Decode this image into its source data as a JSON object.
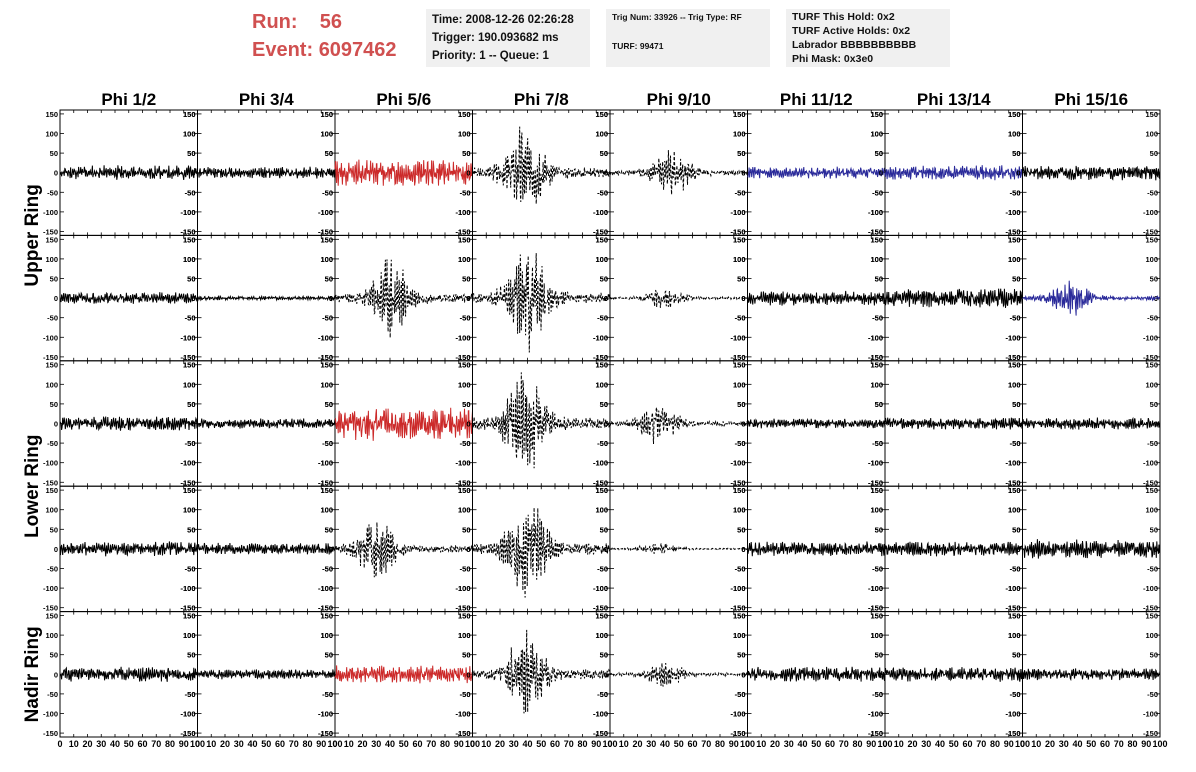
{
  "header": {
    "run_label": "Run:",
    "run_value": "56",
    "event_label": "Event:",
    "event_value": "6097462",
    "time": "Time: 2008-12-26 02:26:28",
    "trigger": "Trigger: 190.093682 ms",
    "priority": "Priority: 1 -- Queue: 1",
    "trig_num": "Trig Num: 33926 -- Trig Type: RF",
    "turf": "TURF: 99471",
    "turf_hold": "TURF This Hold: 0x2",
    "turf_active": "TURF Active Holds: 0x2",
    "labrador": "Labrador BBBBBBBBBB",
    "phi_mask": "Phi Mask: 0x3e0"
  },
  "colors": {
    "run_text": "#d05050",
    "triggered": "#cc2a2a",
    "masked": "#2a2a9a",
    "normal": "#000000",
    "info_bg": "#f0f0f0"
  },
  "chart_data": {
    "type": "line",
    "columns": [
      "Phi 1/2",
      "Phi 3/4",
      "Phi 5/6",
      "Phi 7/8",
      "Phi 9/10",
      "Phi 11/12",
      "Phi 13/14",
      "Phi 15/16"
    ],
    "ring_labels": [
      "Upper Ring",
      "Lower Ring",
      "Nadir Ring"
    ],
    "ylim": [
      -160,
      160
    ],
    "yticks": [
      -150,
      -100,
      -50,
      0,
      50,
      100,
      150
    ],
    "xlim": [
      0,
      100
    ],
    "xticks": [
      0,
      10,
      20,
      30,
      40,
      50,
      60,
      70,
      80,
      90,
      100
    ],
    "panels": [
      [
        {
          "style": "solid",
          "color": "normal",
          "amp": 15,
          "env": "flat",
          "seed": 11
        },
        {
          "style": "solid",
          "color": "normal",
          "amp": 12,
          "env": "flat",
          "seed": 12
        },
        {
          "style": "solid",
          "color": "triggered",
          "amp": 28,
          "env": "flat",
          "seed": 13
        },
        {
          "style": "dashed",
          "color": "normal",
          "amp": 90,
          "env": "pulse",
          "center": 38,
          "seed": 14
        },
        {
          "style": "dashed",
          "color": "normal",
          "amp": 45,
          "env": "pulse",
          "center": 45,
          "seed": 15
        },
        {
          "style": "solid",
          "color": "masked",
          "amp": 12,
          "env": "flat",
          "seed": 16
        },
        {
          "style": "solid",
          "color": "masked",
          "amp": 15,
          "env": "flat",
          "seed": 17
        },
        {
          "style": "solid",
          "color": "normal",
          "amp": 15,
          "env": "flat",
          "seed": 18
        }
      ],
      [
        {
          "style": "solid",
          "color": "normal",
          "amp": 12,
          "env": "flat",
          "seed": 21
        },
        {
          "style": "solid",
          "color": "normal",
          "amp": 4,
          "env": "flat",
          "seed": 22
        },
        {
          "style": "dashed",
          "color": "normal",
          "amp": 80,
          "env": "pulse",
          "center": 40,
          "seed": 23
        },
        {
          "style": "dashed",
          "color": "normal",
          "amp": 100,
          "env": "pulse",
          "center": 40,
          "seed": 24
        },
        {
          "style": "dashed",
          "color": "normal",
          "amp": 20,
          "env": "pulse",
          "center": 40,
          "seed": 25
        },
        {
          "style": "solid",
          "color": "normal",
          "amp": 15,
          "env": "flat",
          "seed": 26
        },
        {
          "style": "solid",
          "color": "normal",
          "amp": 20,
          "env": "flat",
          "seed": 27
        },
        {
          "style": "solid",
          "color": "masked",
          "amp": 35,
          "env": "pulse",
          "center": 35,
          "seed": 28
        }
      ],
      [
        {
          "style": "solid",
          "color": "normal",
          "amp": 15,
          "env": "flat",
          "seed": 31
        },
        {
          "style": "solid",
          "color": "normal",
          "amp": 10,
          "env": "flat",
          "seed": 32
        },
        {
          "style": "solid",
          "color": "triggered",
          "amp": 35,
          "env": "flat",
          "seed": 33
        },
        {
          "style": "dashed",
          "color": "normal",
          "amp": 110,
          "env": "pulse",
          "center": 38,
          "seed": 34
        },
        {
          "style": "dashed",
          "color": "normal",
          "amp": 40,
          "env": "pulse",
          "center": 35,
          "seed": 35
        },
        {
          "style": "solid",
          "color": "normal",
          "amp": 10,
          "env": "flat",
          "seed": 36
        },
        {
          "style": "solid",
          "color": "normal",
          "amp": 12,
          "env": "flat",
          "seed": 37
        },
        {
          "style": "solid",
          "color": "normal",
          "amp": 12,
          "env": "flat",
          "seed": 38
        }
      ],
      [
        {
          "style": "solid",
          "color": "normal",
          "amp": 15,
          "env": "flat",
          "seed": 41
        },
        {
          "style": "solid",
          "color": "normal",
          "amp": 12,
          "env": "flat",
          "seed": 42
        },
        {
          "style": "dashed",
          "color": "normal",
          "amp": 60,
          "env": "pulse",
          "center": 30,
          "seed": 43
        },
        {
          "style": "dashed",
          "color": "normal",
          "amp": 100,
          "env": "pulse",
          "center": 40,
          "seed": 44
        },
        {
          "style": "dashed",
          "color": "normal",
          "amp": 12,
          "env": "pulse",
          "center": 35,
          "seed": 45
        },
        {
          "style": "solid",
          "color": "normal",
          "amp": 15,
          "env": "flat",
          "seed": 46
        },
        {
          "style": "solid",
          "color": "normal",
          "amp": 15,
          "env": "flat",
          "seed": 47
        },
        {
          "style": "solid",
          "color": "normal",
          "amp": 20,
          "env": "flat",
          "seed": 48
        }
      ],
      [
        {
          "style": "solid",
          "color": "normal",
          "amp": 15,
          "env": "flat",
          "seed": 51
        },
        {
          "style": "solid",
          "color": "normal",
          "amp": 10,
          "env": "flat",
          "seed": 52
        },
        {
          "style": "solid",
          "color": "triggered",
          "amp": 18,
          "env": "flat",
          "seed": 53
        },
        {
          "style": "dashed",
          "color": "normal",
          "amp": 85,
          "env": "pulse",
          "center": 38,
          "seed": 54
        },
        {
          "style": "dashed",
          "color": "normal",
          "amp": 25,
          "env": "pulse",
          "center": 40,
          "seed": 55
        },
        {
          "style": "solid",
          "color": "normal",
          "amp": 15,
          "env": "flat",
          "seed": 56
        },
        {
          "style": "solid",
          "color": "normal",
          "amp": 15,
          "env": "flat",
          "seed": 57
        },
        {
          "style": "solid",
          "color": "normal",
          "amp": 12,
          "env": "flat",
          "seed": 58
        }
      ]
    ]
  }
}
